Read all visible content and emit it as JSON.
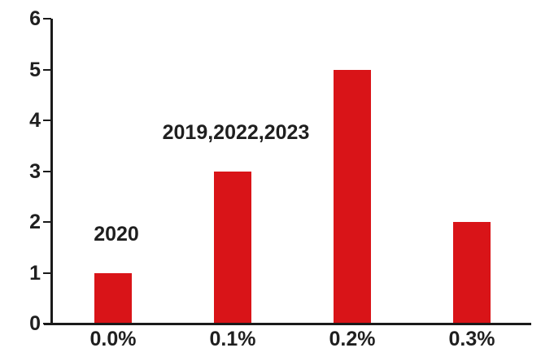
{
  "chart_data": {
    "type": "bar",
    "title": "",
    "xlabel": "",
    "ylabel": "",
    "categories": [
      "0.0%",
      "0.1%",
      "0.2%",
      "0.3%"
    ],
    "values": [
      1,
      3,
      5,
      2
    ],
    "series_name": "count of years",
    "ylim": [
      0,
      6
    ],
    "yticks": [
      0,
      1,
      2,
      3,
      4,
      5,
      6
    ],
    "grid": "off",
    "legend": "none",
    "bar_color": "#d91418",
    "axis_color": "#1a1a1a",
    "text_color": "#1f1f1f",
    "annotations": [
      {
        "text": "2020",
        "bar_index": 0
      },
      {
        "text": "2019,2022,2023",
        "bar_index": 1
      }
    ]
  }
}
